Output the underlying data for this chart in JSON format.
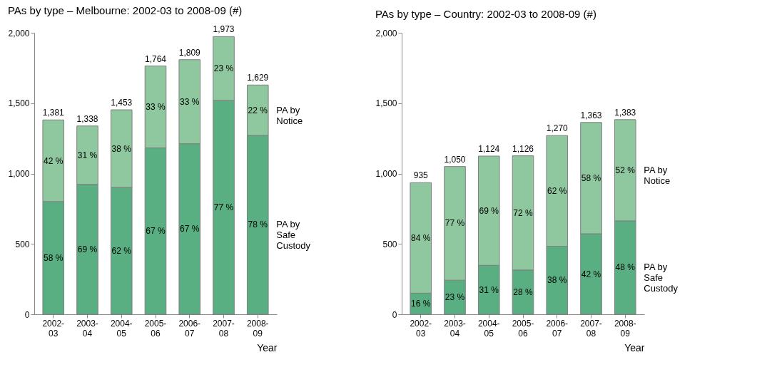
{
  "chart_data": [
    {
      "type": "bar",
      "title": "PAs by type – Melbourne: 2002-03 to 2008-09 (#)",
      "xlabel": "Year",
      "stacked": true,
      "legend": false,
      "grid": false,
      "categories": [
        "2002-03",
        "2003-04",
        "2004-05",
        "2005-06",
        "2006-07",
        "2007-08",
        "2008-09"
      ],
      "ylim": [
        0,
        2000
      ],
      "yticks": [
        {
          "value": 0,
          "label": "0"
        },
        {
          "value": 500,
          "label": "500"
        },
        {
          "value": 1000,
          "label": "1,000"
        },
        {
          "value": 1500,
          "label": "1,500"
        },
        {
          "value": 2000,
          "label": "2,000"
        }
      ],
      "series": [
        {
          "name": "PA by Safe Custody",
          "color": "#5aaf82",
          "values": [
            801,
            923,
            901,
            1182,
            1212,
            1519,
            1271
          ]
        },
        {
          "name": "PA by Notice",
          "color": "#8fc79f",
          "values": [
            580,
            415,
            552,
            582,
            597,
            454,
            358
          ]
        }
      ],
      "totals": [
        "1,381",
        "1,338",
        "1,453",
        "1,764",
        "1,809",
        "1,973",
        "1,629"
      ],
      "annotations": [
        "58 %",
        "69 %",
        "62 %",
        "67 %",
        "67 %",
        "77 %",
        "78 %",
        "42 %",
        "31 %",
        "38 %",
        "33 %",
        "33 %",
        "23 %",
        "22 %"
      ]
    },
    {
      "type": "bar",
      "title": "PAs by type – Country: 2002-03 to 2008-09 (#)",
      "xlabel": "Year",
      "stacked": true,
      "legend": false,
      "grid": false,
      "categories": [
        "2002-03",
        "2003-04",
        "2004-05",
        "2005-06",
        "2006-07",
        "2007-08",
        "2008-09"
      ],
      "ylim": [
        0,
        2000
      ],
      "yticks": [
        {
          "value": 0,
          "label": "0"
        },
        {
          "value": 500,
          "label": "500"
        },
        {
          "value": 1000,
          "label": "1,000"
        },
        {
          "value": 1500,
          "label": "1,500"
        },
        {
          "value": 2000,
          "label": "2,000"
        }
      ],
      "series": [
        {
          "name": "PA by Safe Custody",
          "color": "#5aaf82",
          "values": [
            150,
            242,
            348,
            315,
            483,
            572,
            664
          ]
        },
        {
          "name": "PA by Notice",
          "color": "#8fc79f",
          "values": [
            785,
            808,
            776,
            811,
            787,
            791,
            719
          ]
        }
      ],
      "totals": [
        "935",
        "1,050",
        "1,124",
        "1,126",
        "1,270",
        "1,363",
        "1,383"
      ],
      "annotations": [
        "16 %",
        "23 %",
        "31 %",
        "28 %",
        "38 %",
        "42 %",
        "48 %",
        "84 %",
        "77 %",
        "69 %",
        "72 %",
        "62 %",
        "58 %",
        "52 %"
      ]
    }
  ]
}
